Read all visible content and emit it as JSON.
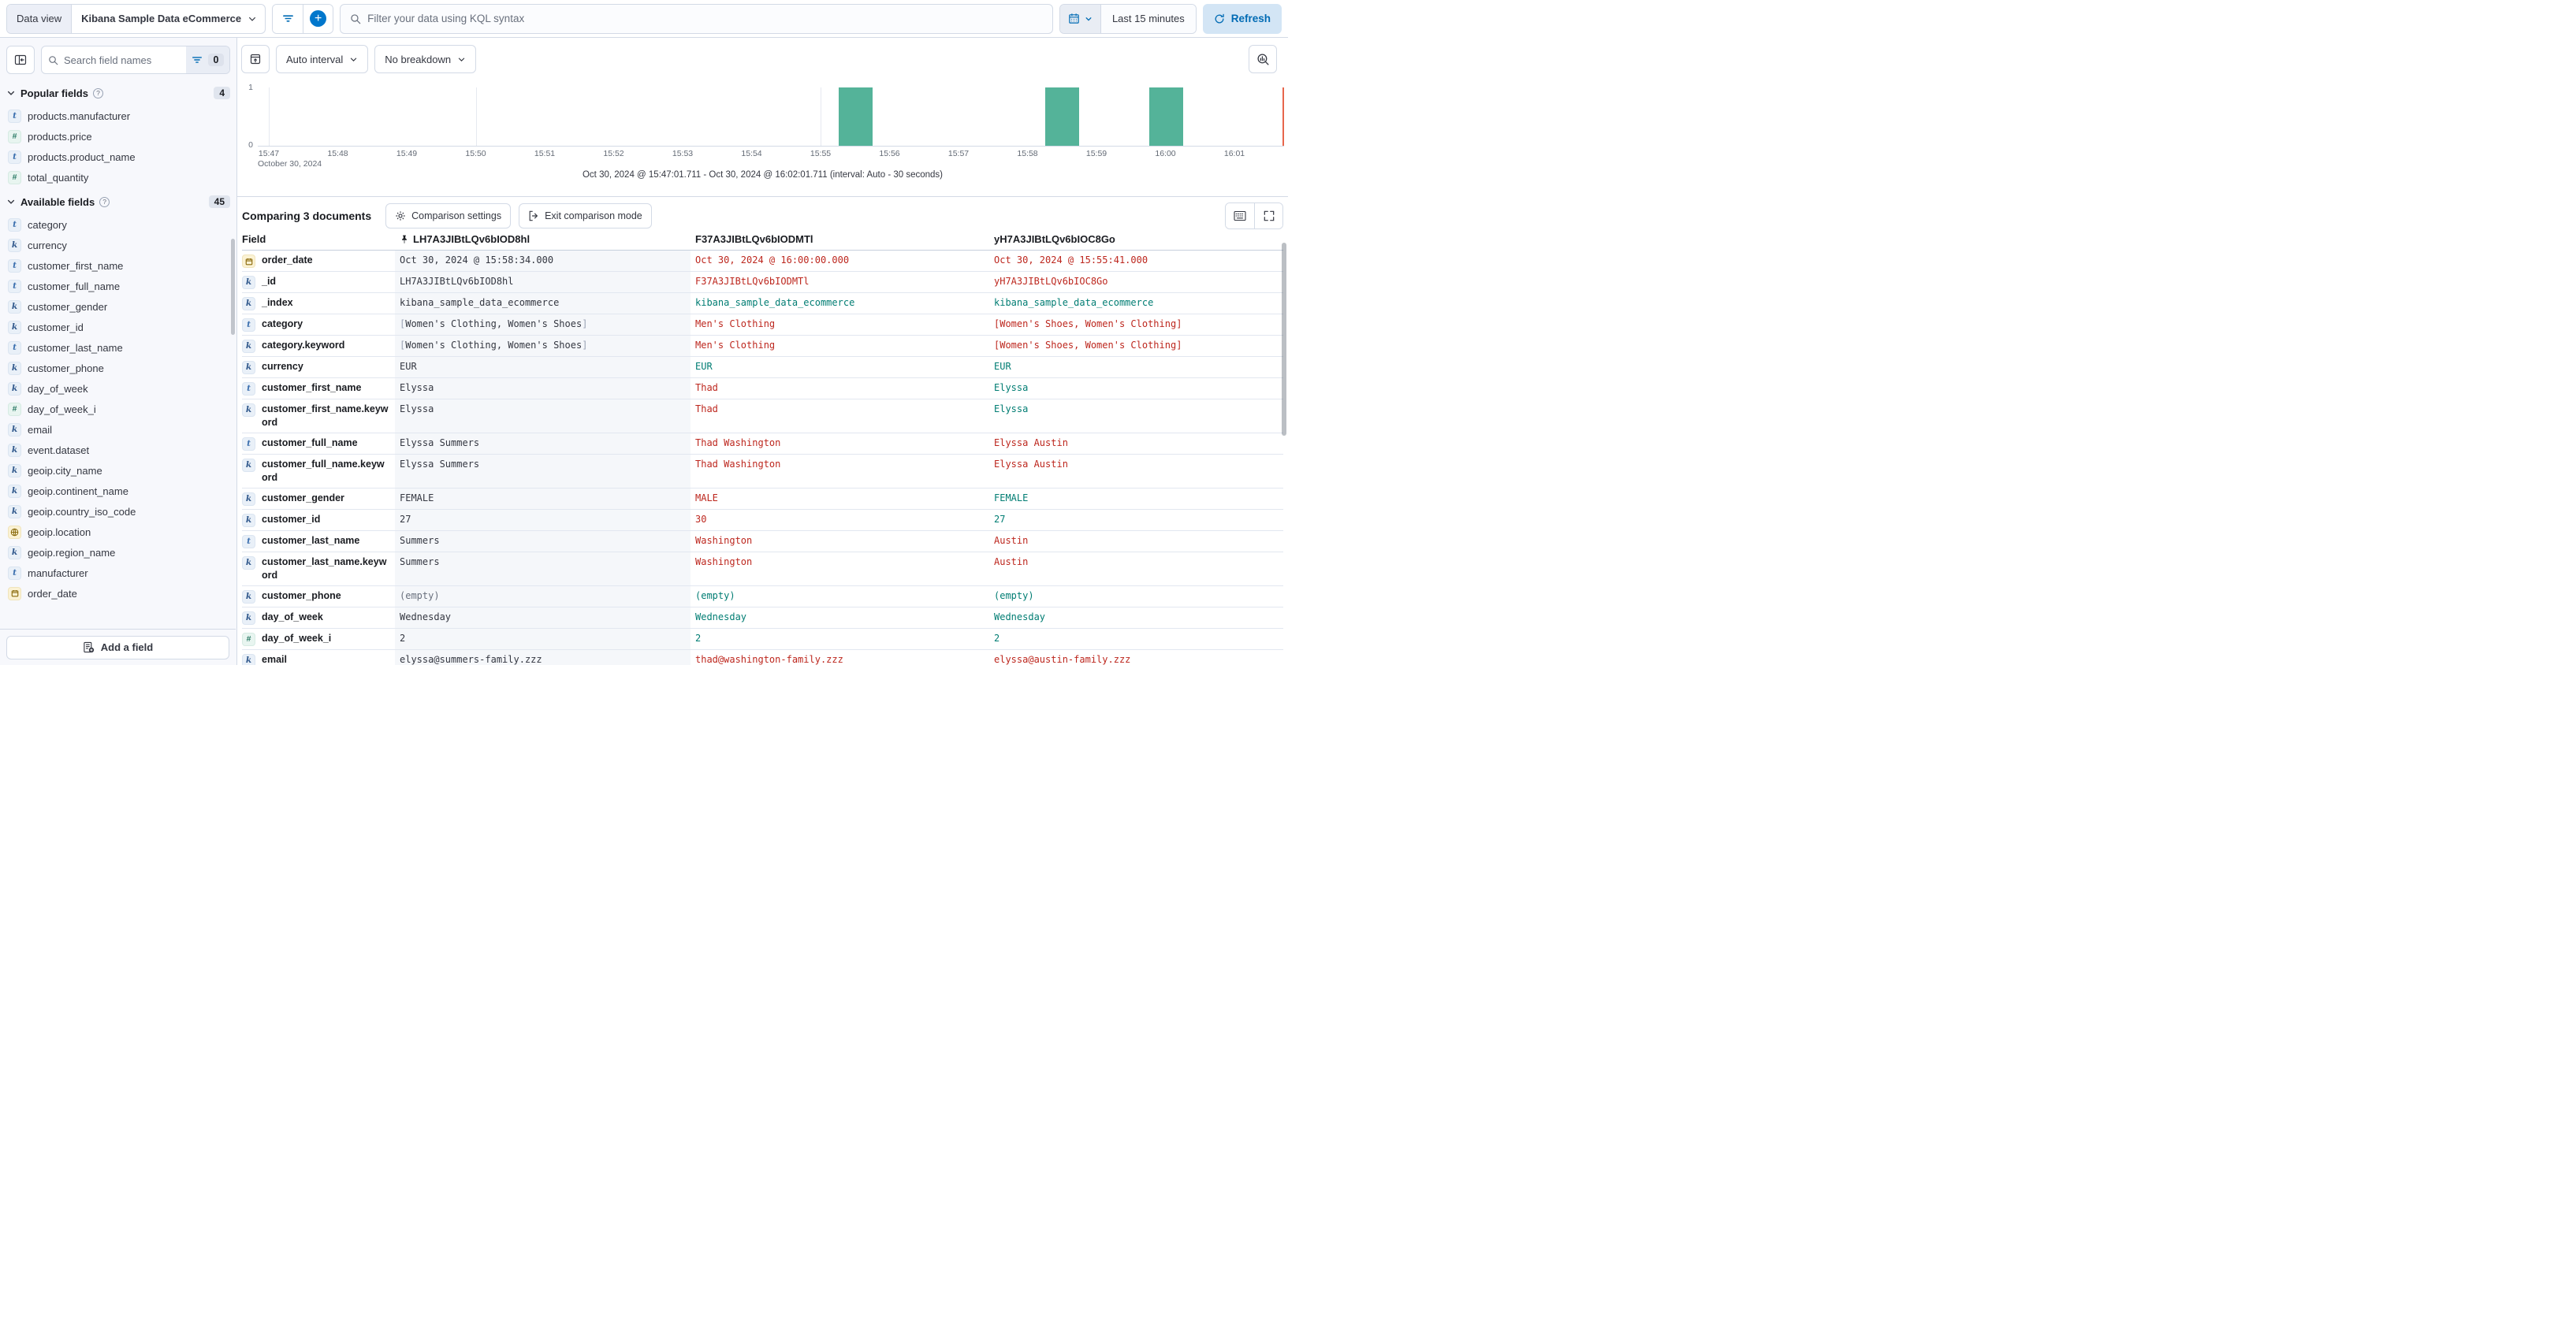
{
  "topbar": {
    "data_view_label": "Data view",
    "data_view_value": "Kibana Sample Data eCommerce",
    "search_placeholder": "Filter your data using KQL syntax",
    "time_range": "Last 15 minutes",
    "refresh_label": "Refresh"
  },
  "sidebar": {
    "search_placeholder": "Search field names",
    "filter_count": "0",
    "popular": {
      "title": "Popular fields",
      "count": "4",
      "items": [
        {
          "type": "t",
          "name": "products.manufacturer"
        },
        {
          "type": "n",
          "name": "products.price"
        },
        {
          "type": "t",
          "name": "products.product_name"
        },
        {
          "type": "n",
          "name": "total_quantity"
        }
      ]
    },
    "available": {
      "title": "Available fields",
      "count": "45",
      "items": [
        {
          "type": "t",
          "name": "category"
        },
        {
          "type": "k",
          "name": "currency"
        },
        {
          "type": "t",
          "name": "customer_first_name"
        },
        {
          "type": "t",
          "name": "customer_full_name"
        },
        {
          "type": "k",
          "name": "customer_gender"
        },
        {
          "type": "k",
          "name": "customer_id"
        },
        {
          "type": "t",
          "name": "customer_last_name"
        },
        {
          "type": "k",
          "name": "customer_phone"
        },
        {
          "type": "k",
          "name": "day_of_week"
        },
        {
          "type": "n",
          "name": "day_of_week_i"
        },
        {
          "type": "k",
          "name": "email"
        },
        {
          "type": "k",
          "name": "event.dataset"
        },
        {
          "type": "k",
          "name": "geoip.city_name"
        },
        {
          "type": "k",
          "name": "geoip.continent_name"
        },
        {
          "type": "k",
          "name": "geoip.country_iso_code"
        },
        {
          "type": "geo",
          "name": "geoip.location"
        },
        {
          "type": "k",
          "name": "geoip.region_name"
        },
        {
          "type": "t",
          "name": "manufacturer"
        },
        {
          "type": "date",
          "name": "order_date"
        }
      ]
    },
    "add_field_label": "Add a field"
  },
  "chart": {
    "interval_label": "Auto interval",
    "breakdown_label": "No breakdown",
    "y_max": "1",
    "y_min": "0",
    "x_context": "October 30, 2024",
    "caption": "Oct 30, 2024 @ 15:47:01.711 - Oct 30, 2024 @ 16:02:01.711 (interval: Auto - 30 seconds)"
  },
  "chart_data": {
    "type": "bar",
    "title": "",
    "xlabel": "October 30, 2024",
    "ylabel": "",
    "ylim": [
      0,
      1
    ],
    "x_ticks": [
      "15:47",
      "15:48",
      "15:49",
      "15:50",
      "15:51",
      "15:52",
      "15:53",
      "15:54",
      "15:55",
      "15:56",
      "15:57",
      "15:58",
      "15:59",
      "16:00",
      "16:01"
    ],
    "interval": "30 seconds",
    "bars": [
      {
        "time": "15:55:30",
        "count": 1
      },
      {
        "time": "15:58:30",
        "count": 1
      },
      {
        "time": "16:00:00",
        "count": 1
      }
    ],
    "gridline_ticks": [
      0,
      3,
      8,
      13
    ],
    "bar_color": "#54b399",
    "end_marker_color": "#e7664c",
    "time_range_caption": "Oct 30, 2024 @ 15:47:01.711 - Oct 30, 2024 @ 16:02:01.711 (interval: Auto - 30 seconds)"
  },
  "comparison": {
    "title": "Comparing 3 documents",
    "settings_label": "Comparison settings",
    "exit_label": "Exit comparison mode",
    "table": {
      "field_header": "Field",
      "columns": [
        {
          "id": "LH7A3JIBtLQv6bIOD8hl",
          "pinned": true
        },
        {
          "id": "F37A3JIBtLQv6bIODMTl",
          "pinned": false
        },
        {
          "id": "yH7A3JIBtLQv6bIOC8Go",
          "pinned": false
        }
      ],
      "rows": [
        {
          "field": "order_date",
          "type": "date",
          "base": "Oct 30, 2024 @ 15:58:34.000",
          "cols": [
            {
              "v": "Oct 30, 2024 @ 16:00:00.000",
              "match": false
            },
            {
              "v": "Oct 30, 2024 @ 15:55:41.000",
              "match": false
            }
          ]
        },
        {
          "field": "_id",
          "type": "k",
          "base": "LH7A3JIBtLQv6bIOD8hl",
          "cols": [
            {
              "v": "F37A3JIBtLQv6bIODMTl",
              "match": false
            },
            {
              "v": "yH7A3JIBtLQv6bIOC8Go",
              "match": false
            }
          ]
        },
        {
          "field": "_index",
          "type": "k",
          "base": "kibana_sample_data_ecommerce",
          "cols": [
            {
              "v": "kibana_sample_data_ecommerce",
              "match": true
            },
            {
              "v": "kibana_sample_data_ecommerce",
              "match": true
            }
          ]
        },
        {
          "field": "category",
          "type": "t",
          "base": "[Women's Clothing, Women's Shoes]",
          "cols": [
            {
              "v": "Men's Clothing",
              "match": false
            },
            {
              "v": "[Women's Shoes, Women's Clothing]",
              "match": false
            }
          ]
        },
        {
          "field": "category.keyword",
          "type": "k",
          "base": "[Women's Clothing, Women's Shoes]",
          "cols": [
            {
              "v": "Men's Clothing",
              "match": false
            },
            {
              "v": "[Women's Shoes, Women's Clothing]",
              "match": false
            }
          ]
        },
        {
          "field": "currency",
          "type": "k",
          "base": "EUR",
          "cols": [
            {
              "v": "EUR",
              "match": true
            },
            {
              "v": "EUR",
              "match": true
            }
          ]
        },
        {
          "field": "customer_first_name",
          "type": "t",
          "base": "Elyssa",
          "cols": [
            {
              "v": "Thad",
              "match": false
            },
            {
              "v": "Elyssa",
              "match": true
            }
          ]
        },
        {
          "field": "customer_first_name.keyword",
          "type": "k",
          "base": "Elyssa",
          "cols": [
            {
              "v": "Thad",
              "match": false
            },
            {
              "v": "Elyssa",
              "match": true
            }
          ]
        },
        {
          "field": "customer_full_name",
          "type": "t",
          "base": "Elyssa Summers",
          "cols": [
            {
              "v": "Thad Washington",
              "match": false
            },
            {
              "v": "Elyssa Austin",
              "match": false
            }
          ]
        },
        {
          "field": "customer_full_name.keyword",
          "type": "k",
          "base": "Elyssa Summers",
          "cols": [
            {
              "v": "Thad Washington",
              "match": false
            },
            {
              "v": "Elyssa Austin",
              "match": false
            }
          ]
        },
        {
          "field": "customer_gender",
          "type": "k",
          "base": "FEMALE",
          "cols": [
            {
              "v": "MALE",
              "match": false
            },
            {
              "v": "FEMALE",
              "match": true
            }
          ]
        },
        {
          "field": "customer_id",
          "type": "k",
          "base": "27",
          "cols": [
            {
              "v": "30",
              "match": false
            },
            {
              "v": "27",
              "match": true
            }
          ]
        },
        {
          "field": "customer_last_name",
          "type": "t",
          "base": "Summers",
          "cols": [
            {
              "v": "Washington",
              "match": false
            },
            {
              "v": "Austin",
              "match": false
            }
          ]
        },
        {
          "field": "customer_last_name.keyword",
          "type": "k",
          "base": "Summers",
          "cols": [
            {
              "v": "Washington",
              "match": false
            },
            {
              "v": "Austin",
              "match": false
            }
          ]
        },
        {
          "field": "customer_phone",
          "type": "k",
          "base": "(empty)",
          "cols": [
            {
              "v": "(empty)",
              "match": true
            },
            {
              "v": "(empty)",
              "match": true
            }
          ]
        },
        {
          "field": "day_of_week",
          "type": "k",
          "base": "Wednesday",
          "cols": [
            {
              "v": "Wednesday",
              "match": true
            },
            {
              "v": "Wednesday",
              "match": true
            }
          ]
        },
        {
          "field": "day_of_week_i",
          "type": "n",
          "base": "2",
          "cols": [
            {
              "v": "2",
              "match": true
            },
            {
              "v": "2",
              "match": true
            }
          ]
        },
        {
          "field": "email",
          "type": "k",
          "base": "elyssa@summers-family.zzz",
          "cols": [
            {
              "v": "thad@washington-family.zzz",
              "match": false
            },
            {
              "v": "elyssa@austin-family.zzz",
              "match": false
            }
          ]
        }
      ]
    }
  }
}
